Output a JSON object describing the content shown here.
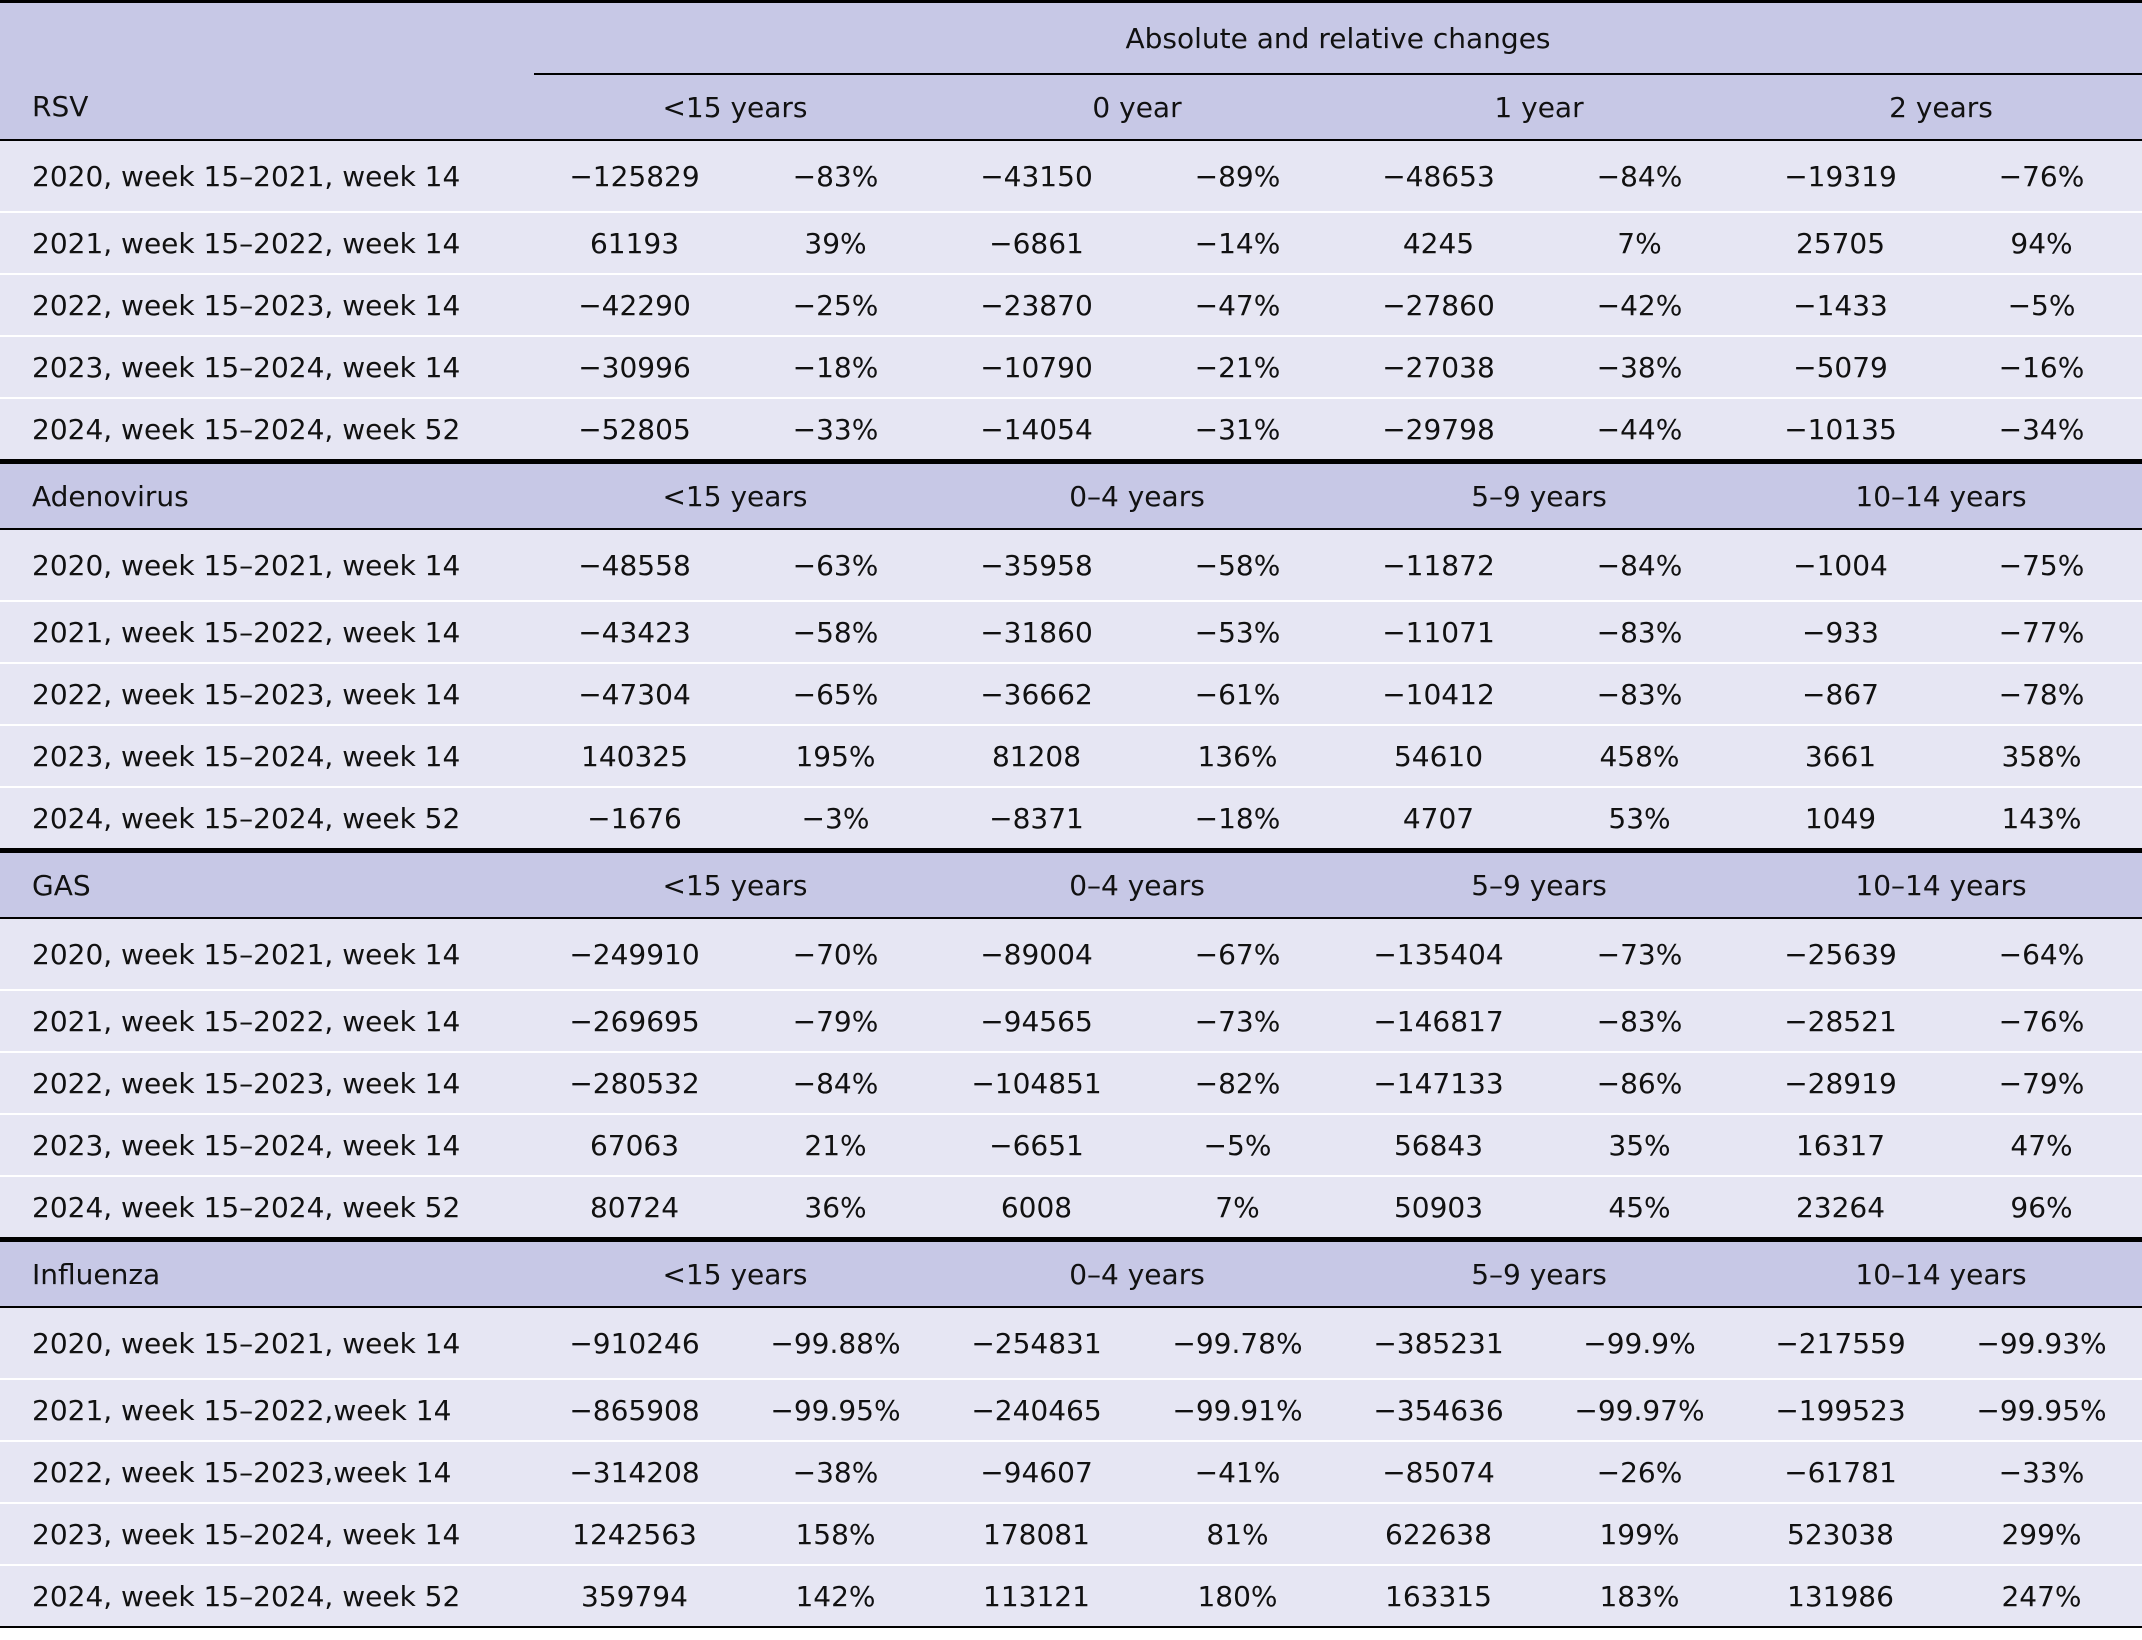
{
  "table": {
    "header": "Absolute and relative changes",
    "sections": [
      {
        "name": "RSV",
        "groups": [
          "<15 years",
          "0 year",
          "1 year",
          "2 years"
        ],
        "rows": [
          {
            "period": "2020, week 15–2021, week 14",
            "cells": [
              "−125829",
              "−83%",
              "−43150",
              "−89%",
              "−48653",
              "−84%",
              "−19319",
              "−76%"
            ]
          },
          {
            "period": "2021, week 15–2022, week 14",
            "cells": [
              "61193",
              "39%",
              "−6861",
              "−14%",
              "4245",
              "7%",
              "25705",
              "94%"
            ]
          },
          {
            "period": "2022, week 15–2023, week 14",
            "cells": [
              "−42290",
              "−25%",
              "−23870",
              "−47%",
              "−27860",
              "−42%",
              "−1433",
              "−5%"
            ]
          },
          {
            "period": "2023, week 15–2024, week 14",
            "cells": [
              "−30996",
              "−18%",
              "−10790",
              "−21%",
              "−27038",
              "−38%",
              "−5079",
              "−16%"
            ]
          },
          {
            "period": "2024, week 15–2024, week 52",
            "cells": [
              "−52805",
              "−33%",
              "−14054",
              "−31%",
              "−29798",
              "−44%",
              "−10135",
              "−34%"
            ]
          }
        ]
      },
      {
        "name": "Adenovirus",
        "groups": [
          "<15 years",
          "0–4 years",
          "5–9 years",
          "10–14 years"
        ],
        "rows": [
          {
            "period": "2020, week 15–2021, week 14",
            "cells": [
              "−48558",
              "−63%",
              "−35958",
              "−58%",
              "−11872",
              "−84%",
              "−1004",
              "−75%"
            ]
          },
          {
            "period": "2021, week 15–2022, week 14",
            "cells": [
              "−43423",
              "−58%",
              "−31860",
              "−53%",
              "−11071",
              "−83%",
              "−933",
              "−77%"
            ]
          },
          {
            "period": "2022, week 15–2023, week 14",
            "cells": [
              "−47304",
              "−65%",
              "−36662",
              "−61%",
              "−10412",
              "−83%",
              "−867",
              "−78%"
            ]
          },
          {
            "period": "2023, week 15–2024, week 14",
            "cells": [
              "140325",
              "195%",
              "81208",
              "136%",
              "54610",
              "458%",
              "3661",
              "358%"
            ]
          },
          {
            "period": "2024, week 15–2024, week 52",
            "cells": [
              "−1676",
              "−3%",
              "−8371",
              "−18%",
              "4707",
              "53%",
              "1049",
              "143%"
            ]
          }
        ]
      },
      {
        "name": "GAS",
        "groups": [
          "<15 years",
          "0–4 years",
          "5–9 years",
          "10–14 years"
        ],
        "rows": [
          {
            "period": "2020, week 15–2021, week 14",
            "cells": [
              "−249910",
              "−70%",
              "−89004",
              "−67%",
              "−135404",
              "−73%",
              "−25639",
              "−64%"
            ]
          },
          {
            "period": "2021, week 15–2022, week 14",
            "cells": [
              "−269695",
              "−79%",
              "−94565",
              "−73%",
              "−146817",
              "−83%",
              "−28521",
              "−76%"
            ]
          },
          {
            "period": "2022, week 15–2023, week 14",
            "cells": [
              "−280532",
              "−84%",
              "−104851",
              "−82%",
              "−147133",
              "−86%",
              "−28919",
              "−79%"
            ]
          },
          {
            "period": "2023, week 15–2024, week 14",
            "cells": [
              "67063",
              "21%",
              "−6651",
              "−5%",
              "56843",
              "35%",
              "16317",
              "47%"
            ]
          },
          {
            "period": "2024, week 15–2024, week 52",
            "cells": [
              "80724",
              "36%",
              "6008",
              "7%",
              "50903",
              "45%",
              "23264",
              "96%"
            ]
          }
        ]
      },
      {
        "name": "Influenza",
        "groups": [
          "<15 years",
          "0–4 years",
          "5–9 years",
          "10–14 years"
        ],
        "rows": [
          {
            "period": "2020, week 15–2021, week 14",
            "cells": [
              "−910246",
              "−99.88%",
              "−254831",
              "−99.78%",
              "−385231",
              "−99.9%",
              "−217559",
              "−99.93%"
            ]
          },
          {
            "period": "2021, week 15–2022,week 14",
            "cells": [
              "−865908",
              "−99.95%",
              "−240465",
              "−99.91%",
              "−354636",
              "−99.97%",
              "−199523",
              "−99.95%"
            ]
          },
          {
            "period": "2022, week 15–2023,week 14",
            "cells": [
              "−314208",
              "−38%",
              "−94607",
              "−41%",
              "−85074",
              "−26%",
              "−61781",
              "−33%"
            ]
          },
          {
            "period": "2023, week 15–2024, week 14",
            "cells": [
              "1242563",
              "158%",
              "178081",
              "81%",
              "622638",
              "199%",
              "523038",
              "299%"
            ]
          },
          {
            "period": "2024, week 15–2024, week 52",
            "cells": [
              "359794",
              "142%",
              "113121",
              "180%",
              "163315",
              "183%",
              "131986",
              "247%"
            ]
          }
        ]
      }
    ]
  }
}
